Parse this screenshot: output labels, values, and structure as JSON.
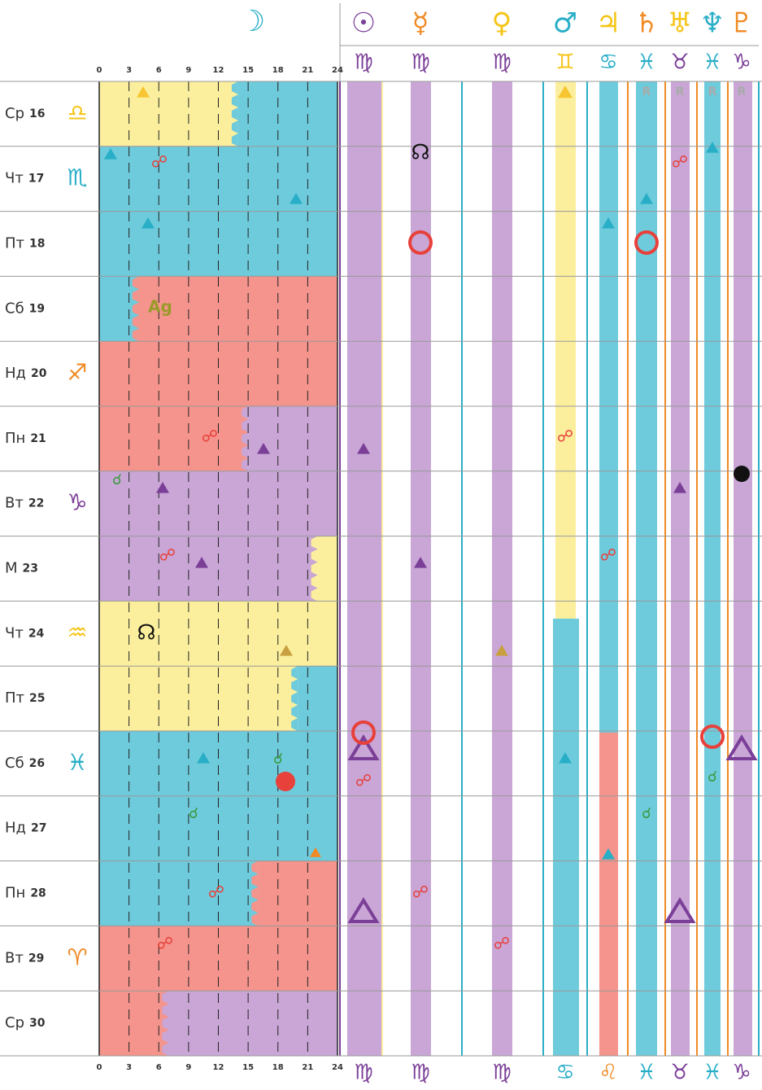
{
  "header": {
    "moon": "☽",
    "planets": [
      {
        "glyph": "☉",
        "sign_top": "♍",
        "sign_bottom": "♍"
      },
      {
        "glyph": "☿",
        "sign_top": "♍",
        "sign_bottom": "♍"
      },
      {
        "glyph": "♀",
        "sign_top": "♍",
        "sign_bottom": "♍"
      },
      {
        "glyph": "♂",
        "sign_top": "♊",
        "sign_bottom": "♋"
      },
      {
        "glyph": "♃",
        "sign_top": "♋",
        "sign_bottom": "♌"
      },
      {
        "glyph": "♄",
        "sign_top": "♓",
        "sign_bottom": "♓",
        "retro": "R"
      },
      {
        "glyph": "♅",
        "sign_top": "♉",
        "sign_bottom": "♉",
        "retro": "R"
      },
      {
        "glyph": "♆",
        "sign_top": "♓",
        "sign_bottom": "♓",
        "retro": "R"
      },
      {
        "glyph": "♇",
        "sign_top": "♑",
        "sign_bottom": "♑",
        "retro": "R"
      }
    ]
  },
  "hours": [
    0,
    3,
    6,
    9,
    12,
    15,
    18,
    21,
    24
  ],
  "days": [
    {
      "label": "Ср",
      "date": 16,
      "sign": "♎"
    },
    {
      "label": "Чт",
      "date": 17,
      "sign": "♏"
    },
    {
      "label": "Пт",
      "date": 18
    },
    {
      "label": "Сб",
      "date": 19
    },
    {
      "label": "Нд",
      "date": 20,
      "sign": "♐"
    },
    {
      "label": "Пн",
      "date": 21
    },
    {
      "label": "Вт",
      "date": 22,
      "sign": "♑"
    },
    {
      "label": "М",
      "date": 23
    },
    {
      "label": "Чт",
      "date": 24,
      "sign": "♒"
    },
    {
      "label": "Пт",
      "date": 25
    },
    {
      "label": "Сб",
      "date": 26,
      "sign": "♓"
    },
    {
      "label": "Нд",
      "date": 27
    },
    {
      "label": "Пн",
      "date": 28
    },
    {
      "label": "Вт",
      "date": 29,
      "sign": "♈"
    },
    {
      "label": "Ср",
      "date": 30
    }
  ],
  "annotations": {
    "ag": "Ag",
    "node": "☊",
    "opposition": "☍",
    "conjunction": "☌"
  }
}
